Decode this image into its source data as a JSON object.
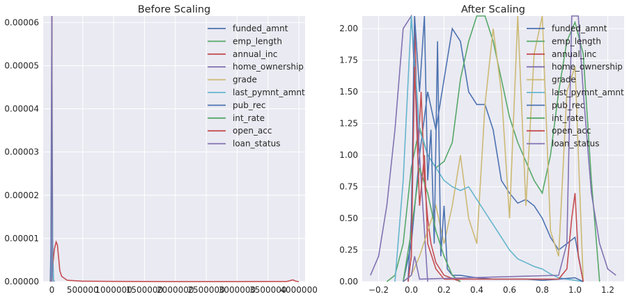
{
  "colors": {
    "plot_background": "#eaeaf2",
    "grid": "#ffffff",
    "palette": [
      "#4c72b0",
      "#55a868",
      "#c44e52",
      "#8172b2",
      "#ccb974",
      "#64b5cd",
      "#4c72b0",
      "#55a868",
      "#c44e52",
      "#8172b2"
    ]
  },
  "legend_labels": [
    "funded_amnt",
    "emp_length",
    "annual_inc",
    "home_ownership",
    "grade",
    "last_pymnt_amnt",
    "pub_rec",
    "int_rate",
    "open_acc",
    "loan_status"
  ],
  "chart_data": [
    {
      "type": "line",
      "title": "Before Scaling",
      "grid": true,
      "legend_position": "top-right",
      "xlim": [
        -140000,
        4100000
      ],
      "ylim": [
        0,
        6.15e-05
      ],
      "x_ticks": [
        "0",
        "500000",
        "1000000",
        "1500000",
        "2000000",
        "2500000",
        "3000000",
        "3500000",
        "4000000"
      ],
      "x_tick_values": [
        0,
        500000,
        1000000,
        1500000,
        2000000,
        2500000,
        3000000,
        3500000,
        4000000
      ],
      "y_ticks": [
        "0.00000",
        "0.00001",
        "0.00002",
        "0.00003",
        "0.00004",
        "0.00005",
        "0.00006"
      ],
      "y_tick_values": [
        0,
        1e-05,
        2e-05,
        3e-05,
        4e-05,
        5e-05,
        6e-05
      ],
      "series": [
        {
          "name": "funded_amnt",
          "x": [
            -25000,
            -15000,
            0,
            12000,
            25000,
            40000
          ],
          "y": [
            0,
            8e-06,
            6.2e-05,
            1e-05,
            5e-07,
            0
          ]
        },
        {
          "name": "emp_length",
          "x": [
            -6,
            0,
            5,
            15
          ],
          "y": [
            0,
            6.2e-05,
            3e-05,
            0
          ]
        },
        {
          "name": "annual_inc",
          "x": [
            -20000,
            10000,
            40000,
            70000,
            90000,
            110000,
            130000,
            160000,
            250000,
            500000,
            1000000,
            2000000,
            3000000,
            3800000,
            3850000,
            3900000,
            3950000,
            4000000
          ],
          "y": [
            0,
            3e-06,
            7.5e-06,
            9.2e-06,
            8.5e-06,
            5.5e-06,
            2.5e-06,
            1.2e-06,
            3e-07,
            1e-07,
            5e-08,
            2e-08,
            2e-08,
            3e-08,
            2e-07,
            4e-07,
            1e-07,
            0
          ]
        },
        {
          "name": "home_ownership",
          "x": [
            -3,
            0,
            1,
            4
          ],
          "y": [
            0,
            6.2e-05,
            4e-05,
            0
          ]
        },
        {
          "name": "grade",
          "x": [
            -2,
            0,
            3
          ],
          "y": [
            0,
            6.2e-05,
            0
          ]
        },
        {
          "name": "last_pymnt_amnt",
          "x": [
            -10000,
            0,
            5000,
            15000,
            30000
          ],
          "y": [
            0,
            2.2e-05,
            1.5e-05,
            3e-06,
            0
          ]
        },
        {
          "name": "pub_rec",
          "x": [
            -2,
            0,
            3
          ],
          "y": [
            0,
            6.2e-05,
            0
          ]
        },
        {
          "name": "int_rate",
          "x": [
            -5,
            5,
            15,
            30
          ],
          "y": [
            0,
            6.2e-05,
            2e-05,
            0
          ]
        },
        {
          "name": "open_acc",
          "x": [
            -5,
            5,
            15,
            40
          ],
          "y": [
            0,
            6.2e-05,
            3e-05,
            0
          ]
        },
        {
          "name": "loan_status",
          "x": [
            -1,
            0,
            1,
            2
          ],
          "y": [
            0,
            6.2e-05,
            6.2e-05,
            0
          ]
        }
      ]
    },
    {
      "type": "line",
      "title": "After Scaling",
      "grid": true,
      "legend_position": "top-right",
      "xlim": [
        -0.3,
        1.3
      ],
      "ylim": [
        0,
        2.1
      ],
      "x_ticks": [
        "−0.2",
        "0.0",
        "0.2",
        "0.4",
        "0.6",
        "0.8",
        "1.0",
        "1.2"
      ],
      "x_tick_values": [
        -0.2,
        0,
        0.2,
        0.4,
        0.6,
        0.8,
        1.0,
        1.2
      ],
      "y_ticks": [
        "0.00",
        "0.25",
        "0.50",
        "0.75",
        "1.00",
        "1.25",
        "1.50",
        "1.75",
        "2.00"
      ],
      "y_tick_values": [
        0,
        0.25,
        0.5,
        0.75,
        1.0,
        1.25,
        1.5,
        1.75,
        2.0
      ],
      "series": [
        {
          "name": "funded_amnt",
          "x": [
            -0.05,
            0,
            0.05,
            0.1,
            0.15,
            0.2,
            0.25,
            0.3,
            0.35,
            0.4,
            0.45,
            0.5,
            0.55,
            0.6,
            0.65,
            0.7,
            0.75,
            0.8,
            0.85,
            0.9,
            0.95,
            1.0,
            1.05
          ],
          "y": [
            0,
            0.3,
            1.0,
            1.5,
            1.2,
            1.6,
            2.0,
            1.9,
            1.5,
            1.4,
            1.4,
            1.2,
            0.8,
            0.7,
            0.62,
            0.65,
            0.6,
            0.5,
            0.35,
            0.25,
            0.3,
            0.35,
            0
          ]
        },
        {
          "name": "emp_length",
          "x": [
            -0.15,
            -0.1,
            -0.05,
            0,
            0.05,
            0.1,
            0.15,
            0.2,
            0.25,
            0.3,
            0.35,
            0.4,
            0.45,
            0.5,
            0.55,
            0.6,
            0.65,
            0.7,
            0.75,
            0.8,
            0.85,
            0.9,
            0.95,
            1.0,
            1.05,
            1.1,
            1.15
          ],
          "y": [
            0,
            0.05,
            0.3,
            0.9,
            1.22,
            1.0,
            0.9,
            0.95,
            1.1,
            1.6,
            1.9,
            2.1,
            2.1,
            1.9,
            1.6,
            1.3,
            1.1,
            0.95,
            0.8,
            0.7,
            1.0,
            1.5,
            1.9,
            2.05,
            1.8,
            0.8,
            0
          ]
        },
        {
          "name": "annual_inc",
          "x": [
            -0.02,
            0,
            0.02,
            0.04,
            0.06,
            0.08,
            0.1,
            0.12,
            0.15,
            0.2,
            0.3
          ],
          "y": [
            0,
            0.2,
            2.1,
            1.0,
            1.5,
            0.8,
            0.5,
            0.3,
            0.15,
            0.05,
            0
          ]
        },
        {
          "name": "home_ownership",
          "x": [
            -0.25,
            -0.2,
            -0.15,
            -0.1,
            -0.05,
            0,
            0.05,
            0.1
          ],
          "y": [
            0.05,
            0.2,
            0.6,
            1.2,
            2.0,
            2.1,
            1.0,
            0
          ]
        },
        {
          "name": "grade",
          "x": [
            -0.05,
            0,
            0.05,
            0.1,
            0.15,
            0.2,
            0.25,
            0.3,
            0.35,
            0.4,
            0.45,
            0.5,
            0.55,
            0.6,
            0.65,
            0.7,
            0.75,
            0.8,
            0.85,
            0.9,
            0.95,
            1.0,
            1.05
          ],
          "y": [
            0,
            0.05,
            0.2,
            0.4,
            0.6,
            0.3,
            0.6,
            1.0,
            0.5,
            0.3,
            1.4,
            2.0,
            1.5,
            0.5,
            2.1,
            0.6,
            1.8,
            2.1,
            0.4,
            0.2,
            1.5,
            1.7,
            0
          ]
        },
        {
          "name": "last_pymnt_amnt",
          "x": [
            -0.1,
            -0.05,
            0,
            0.05,
            0.1,
            0.15,
            0.2,
            0.25,
            0.3,
            0.35,
            0.4,
            0.45,
            0.5,
            0.55,
            0.6,
            0.65,
            0.7,
            0.75,
            0.8,
            0.85,
            0.9,
            0.95,
            1.0,
            1.05
          ],
          "y": [
            0,
            0.8,
            2.1,
            1.2,
            1.0,
            0.9,
            0.8,
            0.75,
            0.72,
            0.75,
            0.65,
            0.55,
            0.45,
            0.35,
            0.25,
            0.18,
            0.15,
            0.12,
            0.1,
            0.06,
            0.03,
            0.02,
            0.01,
            0
          ]
        },
        {
          "name": "pub_rec",
          "x": [
            -0.02,
            0,
            0.02,
            0.05,
            0.08,
            0.1,
            0.12,
            0.14,
            0.16,
            0.18,
            0.2,
            0.22,
            0.25,
            0.3,
            0.4,
            0.5,
            0.6,
            0.7,
            0.8,
            0.9,
            1.0,
            1.05
          ],
          "y": [
            0,
            0.5,
            2.1,
            1.5,
            2.1,
            0.8,
            1.2,
            0.3,
            1.9,
            0.2,
            0.6,
            0.1,
            0.05,
            0.05,
            0.03,
            0.02,
            0.02,
            0.02,
            0.01,
            0.02,
            0.03,
            0
          ]
        },
        {
          "name": "int_rate",
          "x": [
            -0.05,
            0,
            0.05,
            0.1,
            0.15,
            0.2,
            0.25,
            0.3
          ],
          "y": [
            0,
            0.4,
            0.9,
            0.7,
            0.4,
            0.2,
            0.05,
            0
          ]
        },
        {
          "name": "open_acc",
          "x": [
            -0.02,
            0,
            0.02,
            0.05,
            0.08,
            0.1,
            0.15,
            0.2,
            0.9,
            0.95,
            0.98,
            1.0,
            1.02,
            1.05
          ],
          "y": [
            0,
            0.2,
            1.7,
            0.6,
            1.0,
            0.3,
            0.1,
            0.02,
            0.02,
            0.1,
            0.5,
            0.7,
            0.2,
            0
          ]
        },
        {
          "name": "loan_status",
          "x": [
            -0.05,
            0,
            0.02,
            0.05,
            0.9,
            0.95,
            0.98,
            1.0,
            1.02,
            1.05,
            1.1,
            1.15,
            1.2,
            1.25
          ],
          "y": [
            0,
            0.05,
            0.2,
            0.02,
            0.05,
            0.3,
            2.1,
            2.1,
            2.1,
            1.5,
            0.7,
            0.3,
            0.1,
            0.05
          ]
        }
      ]
    }
  ]
}
